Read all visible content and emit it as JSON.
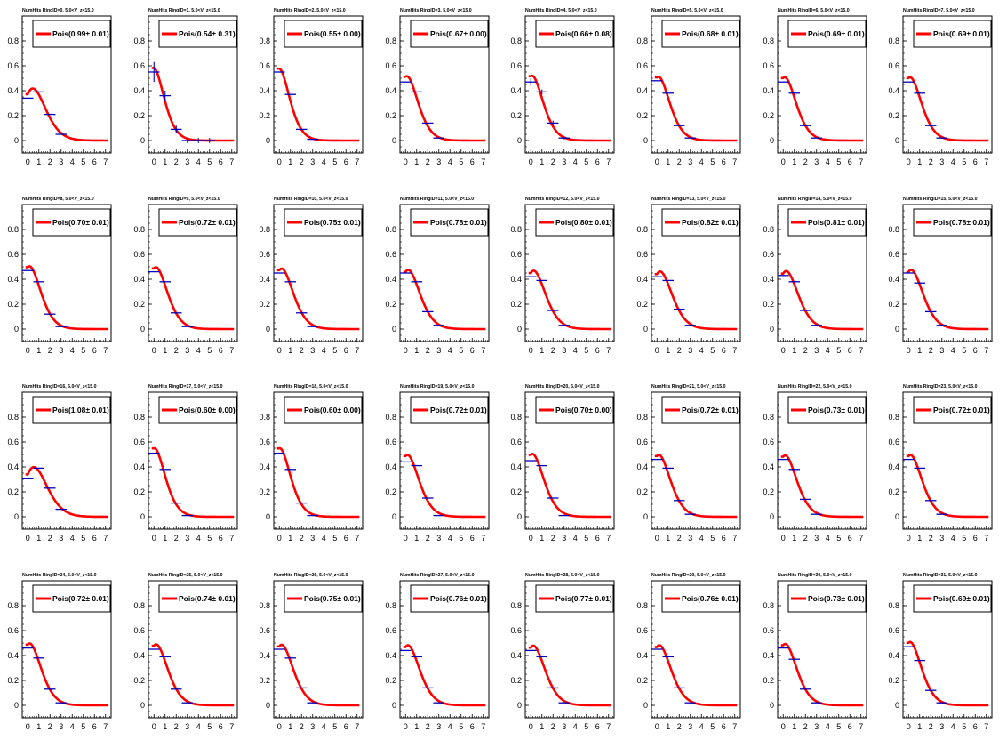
{
  "figure": {
    "x_tick_labels": [
      "0",
      "1",
      "2",
      "3",
      "4",
      "5",
      "6",
      "7"
    ],
    "y_tick_labels": [
      "0",
      "0.2",
      "0.4",
      "0.6",
      "0.8"
    ],
    "colors": {
      "fit": "#ff0000",
      "data": "#0000bb",
      "axes": "#000000"
    }
  },
  "chart_data": [
    {
      "type": "line",
      "title": "NumHits RingID=0, 5.0<V_z<15.0",
      "legend": "Pois(0.99± 0.01)",
      "xlim": [
        -0.5,
        7.5
      ],
      "ylim": [
        -0.1,
        1.0
      ],
      "fit": {
        "name": "Pois",
        "lambda": 0.99,
        "err": 0.01
      },
      "data": {
        "x": [
          0,
          1,
          2,
          3
        ],
        "y": [
          0.34,
          0.39,
          0.21,
          0.05
        ]
      }
    },
    {
      "type": "line",
      "title": "NumHits RingID=1, 5.0<V_z<15.0",
      "legend": "Pois(0.54± 0.31)",
      "xlim": [
        -0.5,
        7.5
      ],
      "ylim": [
        -0.1,
        1.0
      ],
      "fit": {
        "name": "Pois",
        "lambda": 0.54,
        "err": 0.31
      },
      "data": {
        "x": [
          0,
          1,
          2,
          3,
          4,
          5
        ],
        "y": [
          0.55,
          0.36,
          0.09,
          0.0,
          0.0,
          0.0
        ],
        "yerr": [
          0.08,
          0.04,
          0.03,
          0.02,
          0.02,
          0.02
        ]
      }
    },
    {
      "type": "line",
      "title": "NumHits RingID=2, 5.0<V_z<15.0",
      "legend": "Pois(0.55± 0.00)",
      "xlim": [
        -0.5,
        7.5
      ],
      "ylim": [
        -0.1,
        1.0
      ],
      "fit": {
        "name": "Pois",
        "lambda": 0.55,
        "err": 0.0
      },
      "data": {
        "x": [
          0,
          1,
          2,
          3
        ],
        "y": [
          0.55,
          0.37,
          0.09,
          0.01
        ]
      }
    },
    {
      "type": "line",
      "title": "NumHits RingID=3, 5.0<V_z<15.0",
      "legend": "Pois(0.67± 0.00)",
      "xlim": [
        -0.5,
        7.5
      ],
      "ylim": [
        -0.1,
        1.0
      ],
      "fit": {
        "name": "Pois",
        "lambda": 0.67,
        "err": 0.0
      },
      "data": {
        "x": [
          0,
          1,
          2,
          3
        ],
        "y": [
          0.47,
          0.39,
          0.14,
          0.02
        ]
      }
    },
    {
      "type": "line",
      "title": "NumHits RingID=4, 5.0<V_z<15.0",
      "legend": "Pois(0.66± 0.08)",
      "xlim": [
        -0.5,
        7.5
      ],
      "ylim": [
        -0.1,
        1.0
      ],
      "fit": {
        "name": "Pois",
        "lambda": 0.66,
        "err": 0.08
      },
      "data": {
        "x": [
          0,
          1,
          2,
          3
        ],
        "y": [
          0.47,
          0.39,
          0.14,
          0.02
        ],
        "yerr": [
          0.03,
          0.02,
          0.02,
          0.01
        ]
      }
    },
    {
      "type": "line",
      "title": "NumHits RingID=5, 5.0<V_z<15.0",
      "legend": "Pois(0.68± 0.01)",
      "xlim": [
        -0.5,
        7.5
      ],
      "ylim": [
        -0.1,
        1.0
      ],
      "fit": {
        "name": "Pois",
        "lambda": 0.68,
        "err": 0.01
      },
      "data": {
        "x": [
          0,
          1,
          2,
          3
        ],
        "y": [
          0.48,
          0.38,
          0.12,
          0.02
        ]
      }
    },
    {
      "type": "line",
      "title": "NumHits RingID=6, 5.0<V_z<15.0",
      "legend": "Pois(0.69± 0.01)",
      "xlim": [
        -0.5,
        7.5
      ],
      "ylim": [
        -0.1,
        1.0
      ],
      "fit": {
        "name": "Pois",
        "lambda": 0.69,
        "err": 0.01
      },
      "data": {
        "x": [
          0,
          1,
          2,
          3
        ],
        "y": [
          0.47,
          0.38,
          0.12,
          0.02
        ]
      }
    },
    {
      "type": "line",
      "title": "NumHits RingID=7, 5.0<V_z<15.0",
      "legend": "Pois(0.69± 0.01)",
      "xlim": [
        -0.5,
        7.5
      ],
      "ylim": [
        -0.1,
        1.0
      ],
      "fit": {
        "name": "Pois",
        "lambda": 0.69,
        "err": 0.01
      },
      "data": {
        "x": [
          0,
          1,
          2,
          3
        ],
        "y": [
          0.47,
          0.38,
          0.12,
          0.02
        ]
      }
    },
    {
      "type": "line",
      "title": "NumHits RingID=8, 5.0<V_z<15.0",
      "legend": "Pois(0.70± 0.01)",
      "xlim": [
        -0.5,
        7.5
      ],
      "ylim": [
        -0.1,
        1.0
      ],
      "fit": {
        "name": "Pois",
        "lambda": 0.7,
        "err": 0.01
      },
      "data": {
        "x": [
          0,
          1,
          2,
          3
        ],
        "y": [
          0.47,
          0.38,
          0.12,
          0.02
        ]
      }
    },
    {
      "type": "line",
      "title": "NumHits RingID=9, 5.0<V_z<15.0",
      "legend": "Pois(0.72± 0.01)",
      "xlim": [
        -0.5,
        7.5
      ],
      "ylim": [
        -0.1,
        1.0
      ],
      "fit": {
        "name": "Pois",
        "lambda": 0.72,
        "err": 0.01
      },
      "data": {
        "x": [
          0,
          1,
          2,
          3
        ],
        "y": [
          0.46,
          0.38,
          0.13,
          0.02
        ]
      }
    },
    {
      "type": "line",
      "title": "NumHits RingID=10, 5.0<V_z<15.0",
      "legend": "Pois(0.75± 0.01)",
      "xlim": [
        -0.5,
        7.5
      ],
      "ylim": [
        -0.1,
        1.0
      ],
      "fit": {
        "name": "Pois",
        "lambda": 0.75,
        "err": 0.01
      },
      "data": {
        "x": [
          0,
          1,
          2,
          3
        ],
        "y": [
          0.45,
          0.38,
          0.13,
          0.02
        ]
      }
    },
    {
      "type": "line",
      "title": "NumHits RingID=11, 5.0<V_z<15.0",
      "legend": "Pois(0.78± 0.01)",
      "xlim": [
        -0.5,
        7.5
      ],
      "ylim": [
        -0.1,
        1.0
      ],
      "fit": {
        "name": "Pois",
        "lambda": 0.78,
        "err": 0.01
      },
      "data": {
        "x": [
          0,
          1,
          2,
          3
        ],
        "y": [
          0.45,
          0.38,
          0.14,
          0.03
        ]
      }
    },
    {
      "type": "line",
      "title": "NumHits RingID=12, 5.0<V_z<15.0",
      "legend": "Pois(0.80± 0.01)",
      "xlim": [
        -0.5,
        7.5
      ],
      "ylim": [
        -0.1,
        1.0
      ],
      "fit": {
        "name": "Pois",
        "lambda": 0.8,
        "err": 0.01
      },
      "data": {
        "x": [
          0,
          1,
          2,
          3
        ],
        "y": [
          0.42,
          0.39,
          0.15,
          0.03
        ]
      }
    },
    {
      "type": "line",
      "title": "NumHits RingID=13, 5.0<V_z<15.0",
      "legend": "Pois(0.82± 0.01)",
      "xlim": [
        -0.5,
        7.5
      ],
      "ylim": [
        -0.1,
        1.0
      ],
      "fit": {
        "name": "Pois",
        "lambda": 0.82,
        "err": 0.01
      },
      "data": {
        "x": [
          0,
          1,
          2,
          3
        ],
        "y": [
          0.42,
          0.39,
          0.16,
          0.03
        ]
      }
    },
    {
      "type": "line",
      "title": "NumHits RingID=14, 5.0<V_z<15.0",
      "legend": "Pois(0.81± 0.01)",
      "xlim": [
        -0.5,
        7.5
      ],
      "ylim": [
        -0.1,
        1.0
      ],
      "fit": {
        "name": "Pois",
        "lambda": 0.81,
        "err": 0.01
      },
      "data": {
        "x": [
          0,
          1,
          2,
          3
        ],
        "y": [
          0.43,
          0.38,
          0.15,
          0.03
        ]
      }
    },
    {
      "type": "line",
      "title": "NumHits RingID=15, 5.0<V_z<15.0",
      "legend": "Pois(0.78± 0.01)",
      "xlim": [
        -0.5,
        7.5
      ],
      "ylim": [
        -0.1,
        1.0
      ],
      "fit": {
        "name": "Pois",
        "lambda": 0.78,
        "err": 0.01
      },
      "data": {
        "x": [
          0,
          1,
          2,
          3
        ],
        "y": [
          0.45,
          0.37,
          0.14,
          0.03
        ]
      }
    },
    {
      "type": "line",
      "title": "NumHits RingID=16, 5.0<V_z<15.0",
      "legend": "Pois(1.08± 0.01)",
      "xlim": [
        -0.5,
        7.5
      ],
      "ylim": [
        -0.1,
        1.0
      ],
      "fit": {
        "name": "Pois",
        "lambda": 1.08,
        "err": 0.01
      },
      "data": {
        "x": [
          0,
          1,
          2,
          3
        ],
        "y": [
          0.31,
          0.39,
          0.23,
          0.06
        ]
      }
    },
    {
      "type": "line",
      "title": "NumHits RingID=17, 5.0<V_z<15.0",
      "legend": "Pois(0.60± 0.00)",
      "xlim": [
        -0.5,
        7.5
      ],
      "ylim": [
        -0.1,
        1.0
      ],
      "fit": {
        "name": "Pois",
        "lambda": 0.6,
        "err": 0.0
      },
      "data": {
        "x": [
          0,
          1,
          2,
          3
        ],
        "y": [
          0.51,
          0.38,
          0.11,
          0.01
        ]
      }
    },
    {
      "type": "line",
      "title": "NumHits RingID=18, 5.0<V_z<15.0",
      "legend": "Pois(0.60± 0.00)",
      "xlim": [
        -0.5,
        7.5
      ],
      "ylim": [
        -0.1,
        1.0
      ],
      "fit": {
        "name": "Pois",
        "lambda": 0.6,
        "err": 0.0
      },
      "data": {
        "x": [
          0,
          1,
          2,
          3
        ],
        "y": [
          0.51,
          0.38,
          0.11,
          0.01
        ]
      }
    },
    {
      "type": "line",
      "title": "NumHits RingID=19, 5.0<V_z<15.0",
      "legend": "Pois(0.72± 0.01)",
      "xlim": [
        -0.5,
        7.5
      ],
      "ylim": [
        -0.1,
        1.0
      ],
      "fit": {
        "name": "Pois",
        "lambda": 0.72,
        "err": 0.01
      },
      "data": {
        "x": [
          0,
          1,
          2,
          3
        ],
        "y": [
          0.44,
          0.41,
          0.15,
          0.01
        ]
      }
    },
    {
      "type": "line",
      "title": "NumHits RingID=20, 5.0<V_z<15.0",
      "legend": "Pois(0.70± 0.00)",
      "xlim": [
        -0.5,
        7.5
      ],
      "ylim": [
        -0.1,
        1.0
      ],
      "fit": {
        "name": "Pois",
        "lambda": 0.7,
        "err": 0.0
      },
      "data": {
        "x": [
          0,
          1,
          2,
          3
        ],
        "y": [
          0.45,
          0.41,
          0.15,
          0.01
        ]
      }
    },
    {
      "type": "line",
      "title": "NumHits RingID=21, 5.0<V_z<15.0",
      "legend": "Pois(0.72± 0.01)",
      "xlim": [
        -0.5,
        7.5
      ],
      "ylim": [
        -0.1,
        1.0
      ],
      "fit": {
        "name": "Pois",
        "lambda": 0.72,
        "err": 0.01
      },
      "data": {
        "x": [
          0,
          1,
          2,
          3
        ],
        "y": [
          0.46,
          0.39,
          0.13,
          0.02
        ]
      }
    },
    {
      "type": "line",
      "title": "NumHits RingID=22, 5.0<V_z<15.0",
      "legend": "Pois(0.73± 0.01)",
      "xlim": [
        -0.5,
        7.5
      ],
      "ylim": [
        -0.1,
        1.0
      ],
      "fit": {
        "name": "Pois",
        "lambda": 0.73,
        "err": 0.01
      },
      "data": {
        "x": [
          0,
          1,
          2,
          3
        ],
        "y": [
          0.46,
          0.38,
          0.14,
          0.02
        ]
      }
    },
    {
      "type": "line",
      "title": "NumHits RingID=23, 5.0<V_z<15.0",
      "legend": "Pois(0.72± 0.01)",
      "xlim": [
        -0.5,
        7.5
      ],
      "ylim": [
        -0.1,
        1.0
      ],
      "fit": {
        "name": "Pois",
        "lambda": 0.72,
        "err": 0.01
      },
      "data": {
        "x": [
          0,
          1,
          2,
          3
        ],
        "y": [
          0.46,
          0.39,
          0.13,
          0.02
        ]
      }
    },
    {
      "type": "line",
      "title": "NumHits RingID=24, 5.0<V_z<15.0",
      "legend": "Pois(0.72± 0.01)",
      "xlim": [
        -0.5,
        7.5
      ],
      "ylim": [
        -0.1,
        1.0
      ],
      "fit": {
        "name": "Pois",
        "lambda": 0.72,
        "err": 0.01
      },
      "data": {
        "x": [
          0,
          1,
          2,
          3
        ],
        "y": [
          0.46,
          0.38,
          0.13,
          0.02
        ]
      }
    },
    {
      "type": "line",
      "title": "NumHits RingID=25, 5.0<V_z<15.0",
      "legend": "Pois(0.74± 0.01)",
      "xlim": [
        -0.5,
        7.5
      ],
      "ylim": [
        -0.1,
        1.0
      ],
      "fit": {
        "name": "Pois",
        "lambda": 0.74,
        "err": 0.01
      },
      "data": {
        "x": [
          0,
          1,
          2,
          3
        ],
        "y": [
          0.45,
          0.39,
          0.13,
          0.02
        ]
      }
    },
    {
      "type": "line",
      "title": "NumHits RingID=26, 5.0<V_z<15.0",
      "legend": "Pois(0.75± 0.01)",
      "xlim": [
        -0.5,
        7.5
      ],
      "ylim": [
        -0.1,
        1.0
      ],
      "fit": {
        "name": "Pois",
        "lambda": 0.75,
        "err": 0.01
      },
      "data": {
        "x": [
          0,
          1,
          2,
          3
        ],
        "y": [
          0.45,
          0.38,
          0.14,
          0.02
        ]
      }
    },
    {
      "type": "line",
      "title": "NumHits RingID=27, 5.0<V_z<15.0",
      "legend": "Pois(0.76± 0.01)",
      "xlim": [
        -0.5,
        7.5
      ],
      "ylim": [
        -0.1,
        1.0
      ],
      "fit": {
        "name": "Pois",
        "lambda": 0.76,
        "err": 0.01
      },
      "data": {
        "x": [
          0,
          1,
          2,
          3
        ],
        "y": [
          0.44,
          0.39,
          0.14,
          0.02
        ]
      }
    },
    {
      "type": "line",
      "title": "NumHits RingID=28, 5.0<V_z<15.0",
      "legend": "Pois(0.77± 0.01)",
      "xlim": [
        -0.5,
        7.5
      ],
      "ylim": [
        -0.1,
        1.0
      ],
      "fit": {
        "name": "Pois",
        "lambda": 0.77,
        "err": 0.01
      },
      "data": {
        "x": [
          0,
          1,
          2,
          3
        ],
        "y": [
          0.44,
          0.39,
          0.14,
          0.02
        ]
      }
    },
    {
      "type": "line",
      "title": "NumHits RingID=29, 5.0<V_z<15.0",
      "legend": "Pois(0.76± 0.01)",
      "xlim": [
        -0.5,
        7.5
      ],
      "ylim": [
        -0.1,
        1.0
      ],
      "fit": {
        "name": "Pois",
        "lambda": 0.76,
        "err": 0.01
      },
      "data": {
        "x": [
          0,
          1,
          2,
          3
        ],
        "y": [
          0.45,
          0.39,
          0.14,
          0.02
        ]
      }
    },
    {
      "type": "line",
      "title": "NumHits RingID=30, 5.0<V_z<15.0",
      "legend": "Pois(0.73± 0.01)",
      "xlim": [
        -0.5,
        7.5
      ],
      "ylim": [
        -0.1,
        1.0
      ],
      "fit": {
        "name": "Pois",
        "lambda": 0.73,
        "err": 0.01
      },
      "data": {
        "x": [
          0,
          1,
          2,
          3
        ],
        "y": [
          0.46,
          0.37,
          0.13,
          0.02
        ]
      }
    },
    {
      "type": "line",
      "title": "NumHits RingID=31, 5.0<V_z<15.0",
      "legend": "Pois(0.69± 0.01)",
      "xlim": [
        -0.5,
        7.5
      ],
      "ylim": [
        -0.1,
        1.0
      ],
      "fit": {
        "name": "Pois",
        "lambda": 0.69,
        "err": 0.01
      },
      "data": {
        "x": [
          0,
          1,
          2,
          3
        ],
        "y": [
          0.47,
          0.36,
          0.12,
          0.02
        ]
      }
    }
  ]
}
